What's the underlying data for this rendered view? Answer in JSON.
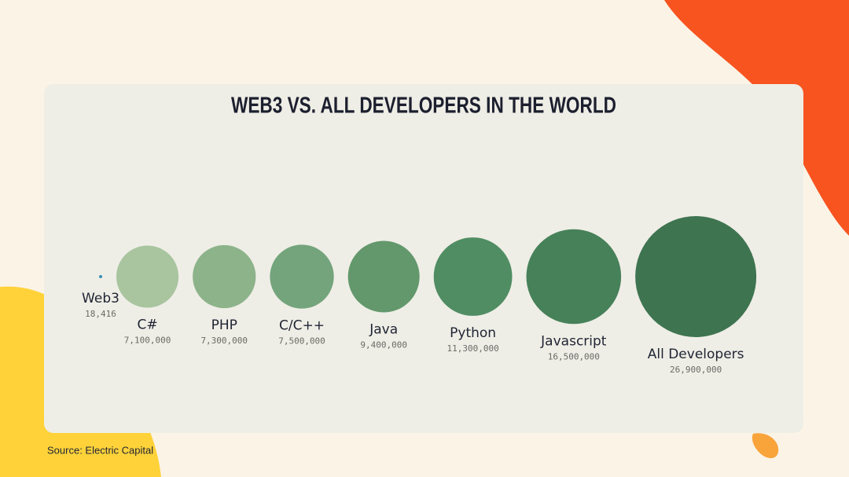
{
  "chart_data": {
    "type": "bubble",
    "title": "WEB3 VS. ALL DEVELOPERS IN THE WORLD",
    "categories": [
      "Web3",
      "C#",
      "PHP",
      "C/C++",
      "Java",
      "Python",
      "Javascript",
      "All Developers"
    ],
    "values": [
      18416,
      7100000,
      7300000,
      7500000,
      9400000,
      11300000,
      16500000,
      26900000
    ],
    "value_labels": [
      "18,416",
      "7,100,000",
      "7,300,000",
      "7,500,000",
      "9,400,000",
      "11,300,000",
      "16,500,000",
      "26,900,000"
    ],
    "colors": [
      "#3a8fb7",
      "#a9c5a0",
      "#8db38b",
      "#74a47b",
      "#62986c",
      "#518d63",
      "#468159",
      "#3e7450"
    ],
    "source": "Source: Electric Capital"
  }
}
